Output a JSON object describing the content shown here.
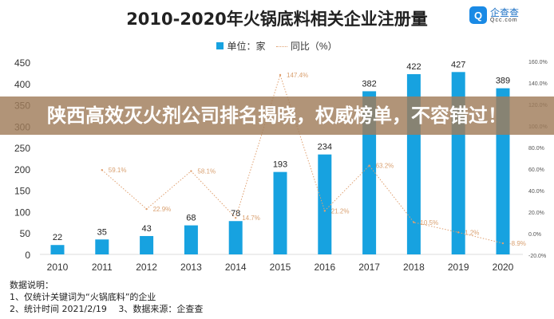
{
  "chart_data": {
    "type": "bar",
    "title": "2010-2020年火锅底料相关企业注册量",
    "categories": [
      "2010",
      "2011",
      "2012",
      "2013",
      "2014",
      "2015",
      "2016",
      "2017",
      "2018",
      "2019",
      "2020"
    ],
    "series": [
      {
        "name": "单位：家",
        "type": "bar",
        "axis": "left",
        "values": [
          22,
          35,
          43,
          68,
          78,
          193,
          234,
          382,
          422,
          427,
          389
        ],
        "color": "#17a2e0"
      },
      {
        "name": "同比（%）",
        "type": "line",
        "axis": "right",
        "values": [
          null,
          59.1,
          22.9,
          58.1,
          14.7,
          147.4,
          21.2,
          63.2,
          10.5,
          1.2,
          -8.9
        ],
        "labels": [
          "",
          "59.1%",
          "22.9%",
          "58.1%",
          "14.7%",
          "147.4%",
          "21.2%",
          "63.2%",
          "10.5%",
          "1.2%",
          "-8.9%"
        ],
        "color": "#e0a070"
      }
    ],
    "ylim": [
      0,
      450
    ],
    "yticks": [
      "0",
      "50",
      "100",
      "150",
      "200",
      "250",
      "300",
      "350",
      "400",
      "450"
    ],
    "y2lim": [
      -20,
      160
    ],
    "y2ticks": [
      "-20.0%",
      "0.0%",
      "20.0%",
      "40.0%",
      "60.0%",
      "80.0%",
      "100.0%",
      "120.0%",
      "140.0%",
      "160.0%"
    ],
    "legend": "top"
  },
  "logo": {
    "name": "企查查",
    "url_text": "Qcc.com"
  },
  "notes": [
    "数据说明：",
    "1、仅统计关键词为“火锅底料”的企业",
    "2、统计时间 2021/2/19　 3、数据来源：企查查"
  ],
  "banner": "陕西高效灭火剂公司排名揭晓，权威榜单，不容错过！"
}
